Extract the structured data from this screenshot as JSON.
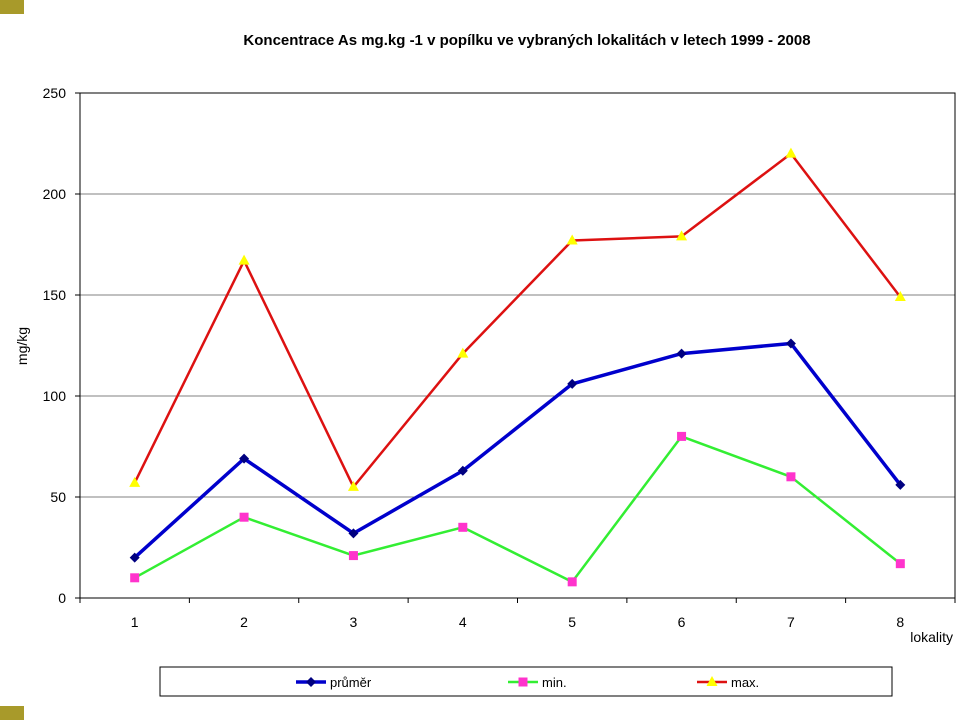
{
  "chart_data": {
    "type": "line",
    "title": "Koncentrace  As mg.kg -1 v popílku ve vybraných lokalitách v letech 1999 - 2008",
    "xlabel": "lokality",
    "ylabel": "mg/kg",
    "categories": [
      "1",
      "2",
      "3",
      "4",
      "5",
      "6",
      "7",
      "8"
    ],
    "ylim": [
      0,
      250
    ],
    "yticks": [
      "0",
      "50",
      "100",
      "150",
      "200",
      "250"
    ],
    "grid": true,
    "legend_position": "bottom",
    "series": [
      {
        "name": "průměr",
        "color": "#0000cc",
        "marker": "diamond",
        "marker_color": "#000080",
        "values": [
          20,
          69,
          32,
          63,
          106,
          121,
          126,
          56
        ]
      },
      {
        "name": "min.",
        "color": "#33ee33",
        "marker": "square",
        "marker_color": "#ff33cc",
        "values": [
          10,
          40,
          21,
          35,
          8,
          80,
          60,
          17
        ]
      },
      {
        "name": "max.",
        "color": "#dd1111",
        "marker": "triangle",
        "marker_color": "#ffff00",
        "values": [
          57,
          167,
          55,
          121,
          177,
          179,
          220,
          149
        ]
      }
    ]
  }
}
